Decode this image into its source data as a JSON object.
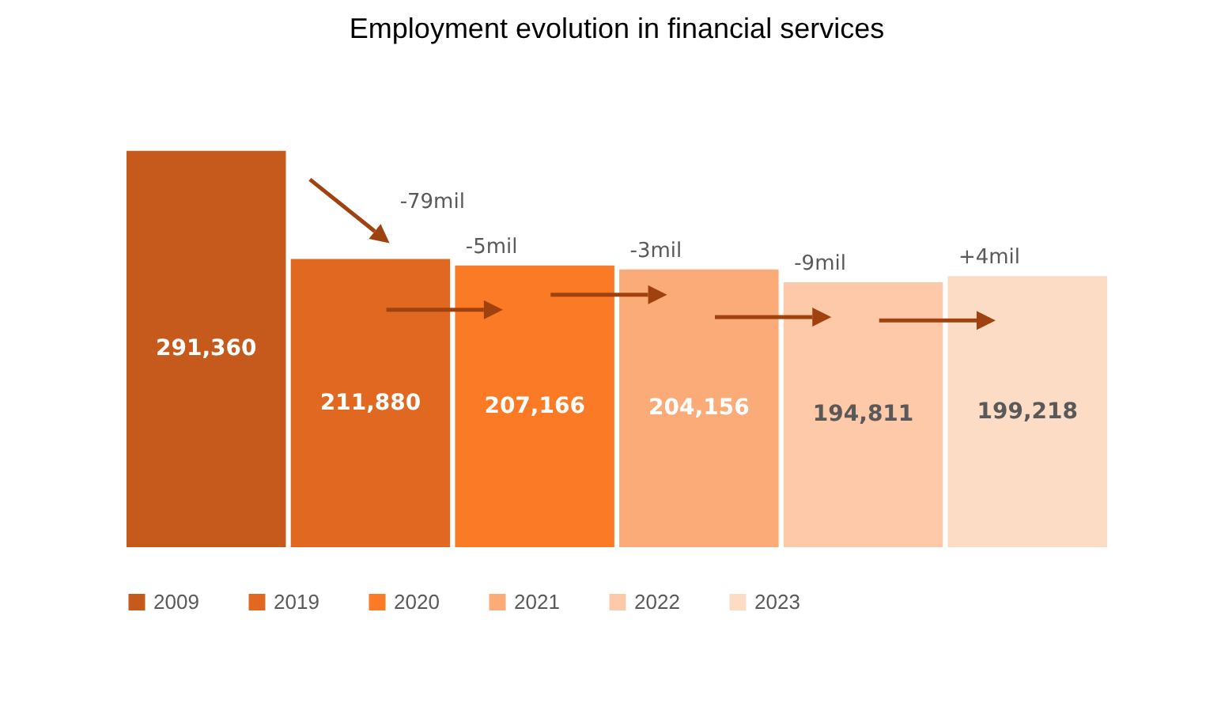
{
  "chart_data": {
    "type": "bar",
    "title": "Employment evolution in financial services",
    "categories": [
      null
    ],
    "series": [
      {
        "name": "2009",
        "color": "#c55a1c",
        "values": [
          291360
        ],
        "value_labels": [
          "291,360"
        ]
      },
      {
        "name": "2019",
        "color": "#e06820",
        "values": [
          211880
        ],
        "value_labels": [
          "211,880"
        ]
      },
      {
        "name": "2020",
        "color": "#fb7a26",
        "values": [
          207166
        ],
        "value_labels": [
          "207,166"
        ]
      },
      {
        "name": "2021",
        "color": "#fbab78",
        "values": [
          204156
        ],
        "value_labels": [
          "204,156"
        ]
      },
      {
        "name": "2022",
        "color": "#fdc9a8",
        "values": [
          194811
        ],
        "value_labels": [
          "194,811"
        ]
      },
      {
        "name": "2023",
        "color": "#fddcc6",
        "values": [
          199218
        ],
        "value_labels": [
          "199,218"
        ]
      }
    ],
    "legend": "bottom",
    "tick_labels": false,
    "grid": false,
    "annotations": [
      "-79mil",
      "-5mil",
      "-3mil",
      "-9mil",
      "+4mil"
    ]
  }
}
